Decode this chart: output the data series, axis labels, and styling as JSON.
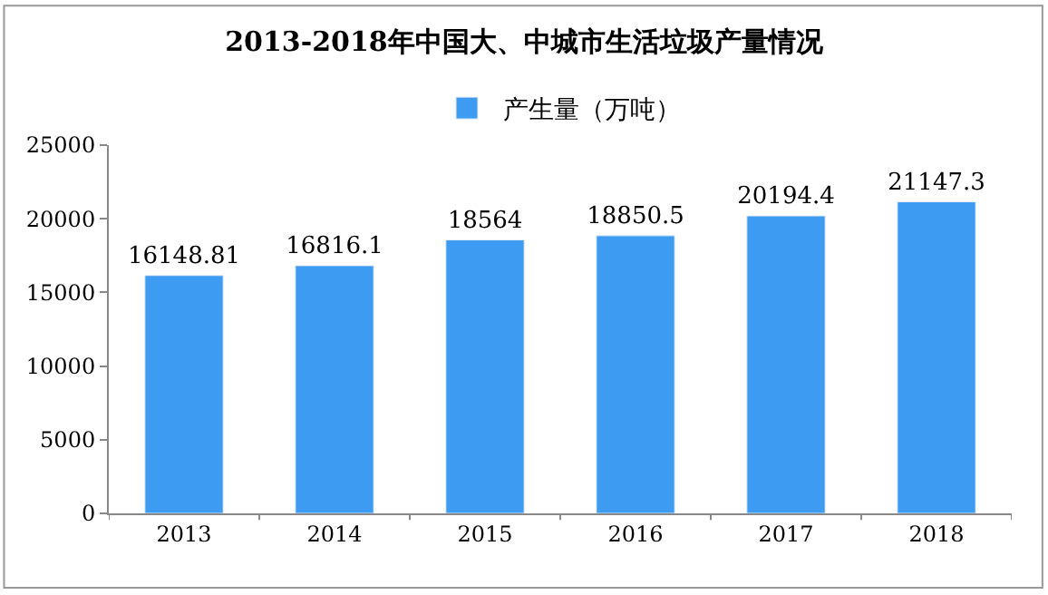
{
  "chart_data": {
    "type": "bar",
    "title": "2013-2018年中国大、中城市生活垃圾产量情况",
    "categories": [
      "2013",
      "2014",
      "2015",
      "2016",
      "2017",
      "2018"
    ],
    "series": [
      {
        "name": "产生量（万吨）",
        "color": "#3d9bf1",
        "values": [
          16148.81,
          16816.1,
          18564,
          18850.5,
          20194.4,
          21147.3
        ]
      }
    ],
    "ylim": [
      0,
      25000
    ],
    "yticks": [
      0,
      5000,
      10000,
      15000,
      20000,
      25000
    ],
    "legend": "top",
    "data_labels": true
  }
}
